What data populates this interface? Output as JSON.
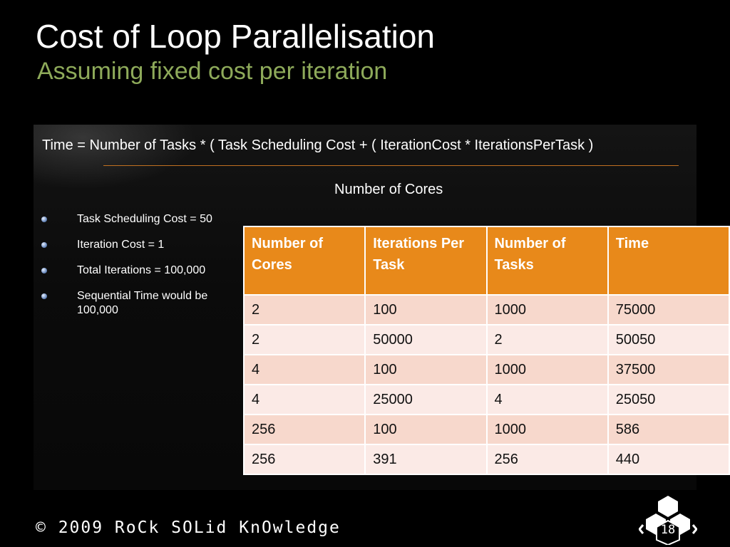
{
  "slide": {
    "title": "Cost of Loop Parallelisation",
    "subtitle": "Assuming fixed cost per iteration",
    "formula": "Time = Number of Tasks * ( Task Scheduling Cost +  ( IterationCost * IterationsPerTask )",
    "cores_heading": "Number of Cores",
    "bullets": [
      "Task Scheduling Cost = 50",
      "Iteration Cost = 1",
      "Total Iterations = 100,000",
      "Sequential Time would be 100,000"
    ],
    "footer": "© 2009 RoCk SOLid KnOwledge",
    "page_number": "18"
  },
  "table": {
    "headers": [
      "Number of Cores",
      "Iterations Per Task",
      "Number of Tasks",
      "Time"
    ],
    "rows": [
      [
        "2",
        "100",
        "1000",
        "75000"
      ],
      [
        "2",
        "50000",
        "2",
        "50050"
      ],
      [
        "4",
        "100",
        "1000",
        "37500"
      ],
      [
        "4",
        "25000",
        "4",
        "25050"
      ],
      [
        "256",
        "100",
        "1000",
        "586"
      ],
      [
        "256",
        "391",
        "256",
        "440"
      ]
    ]
  },
  "colors": {
    "subtitle": "#8eaa5a",
    "header_fill": "#e8891a",
    "row_odd": "#f7d8cc",
    "row_even": "#fbeae6",
    "divider": "#c07020",
    "bullet": "#6c8cc0"
  },
  "icons": {
    "bullet": "bullet-dot-icon",
    "logo": "hexagon-logo-icon"
  }
}
